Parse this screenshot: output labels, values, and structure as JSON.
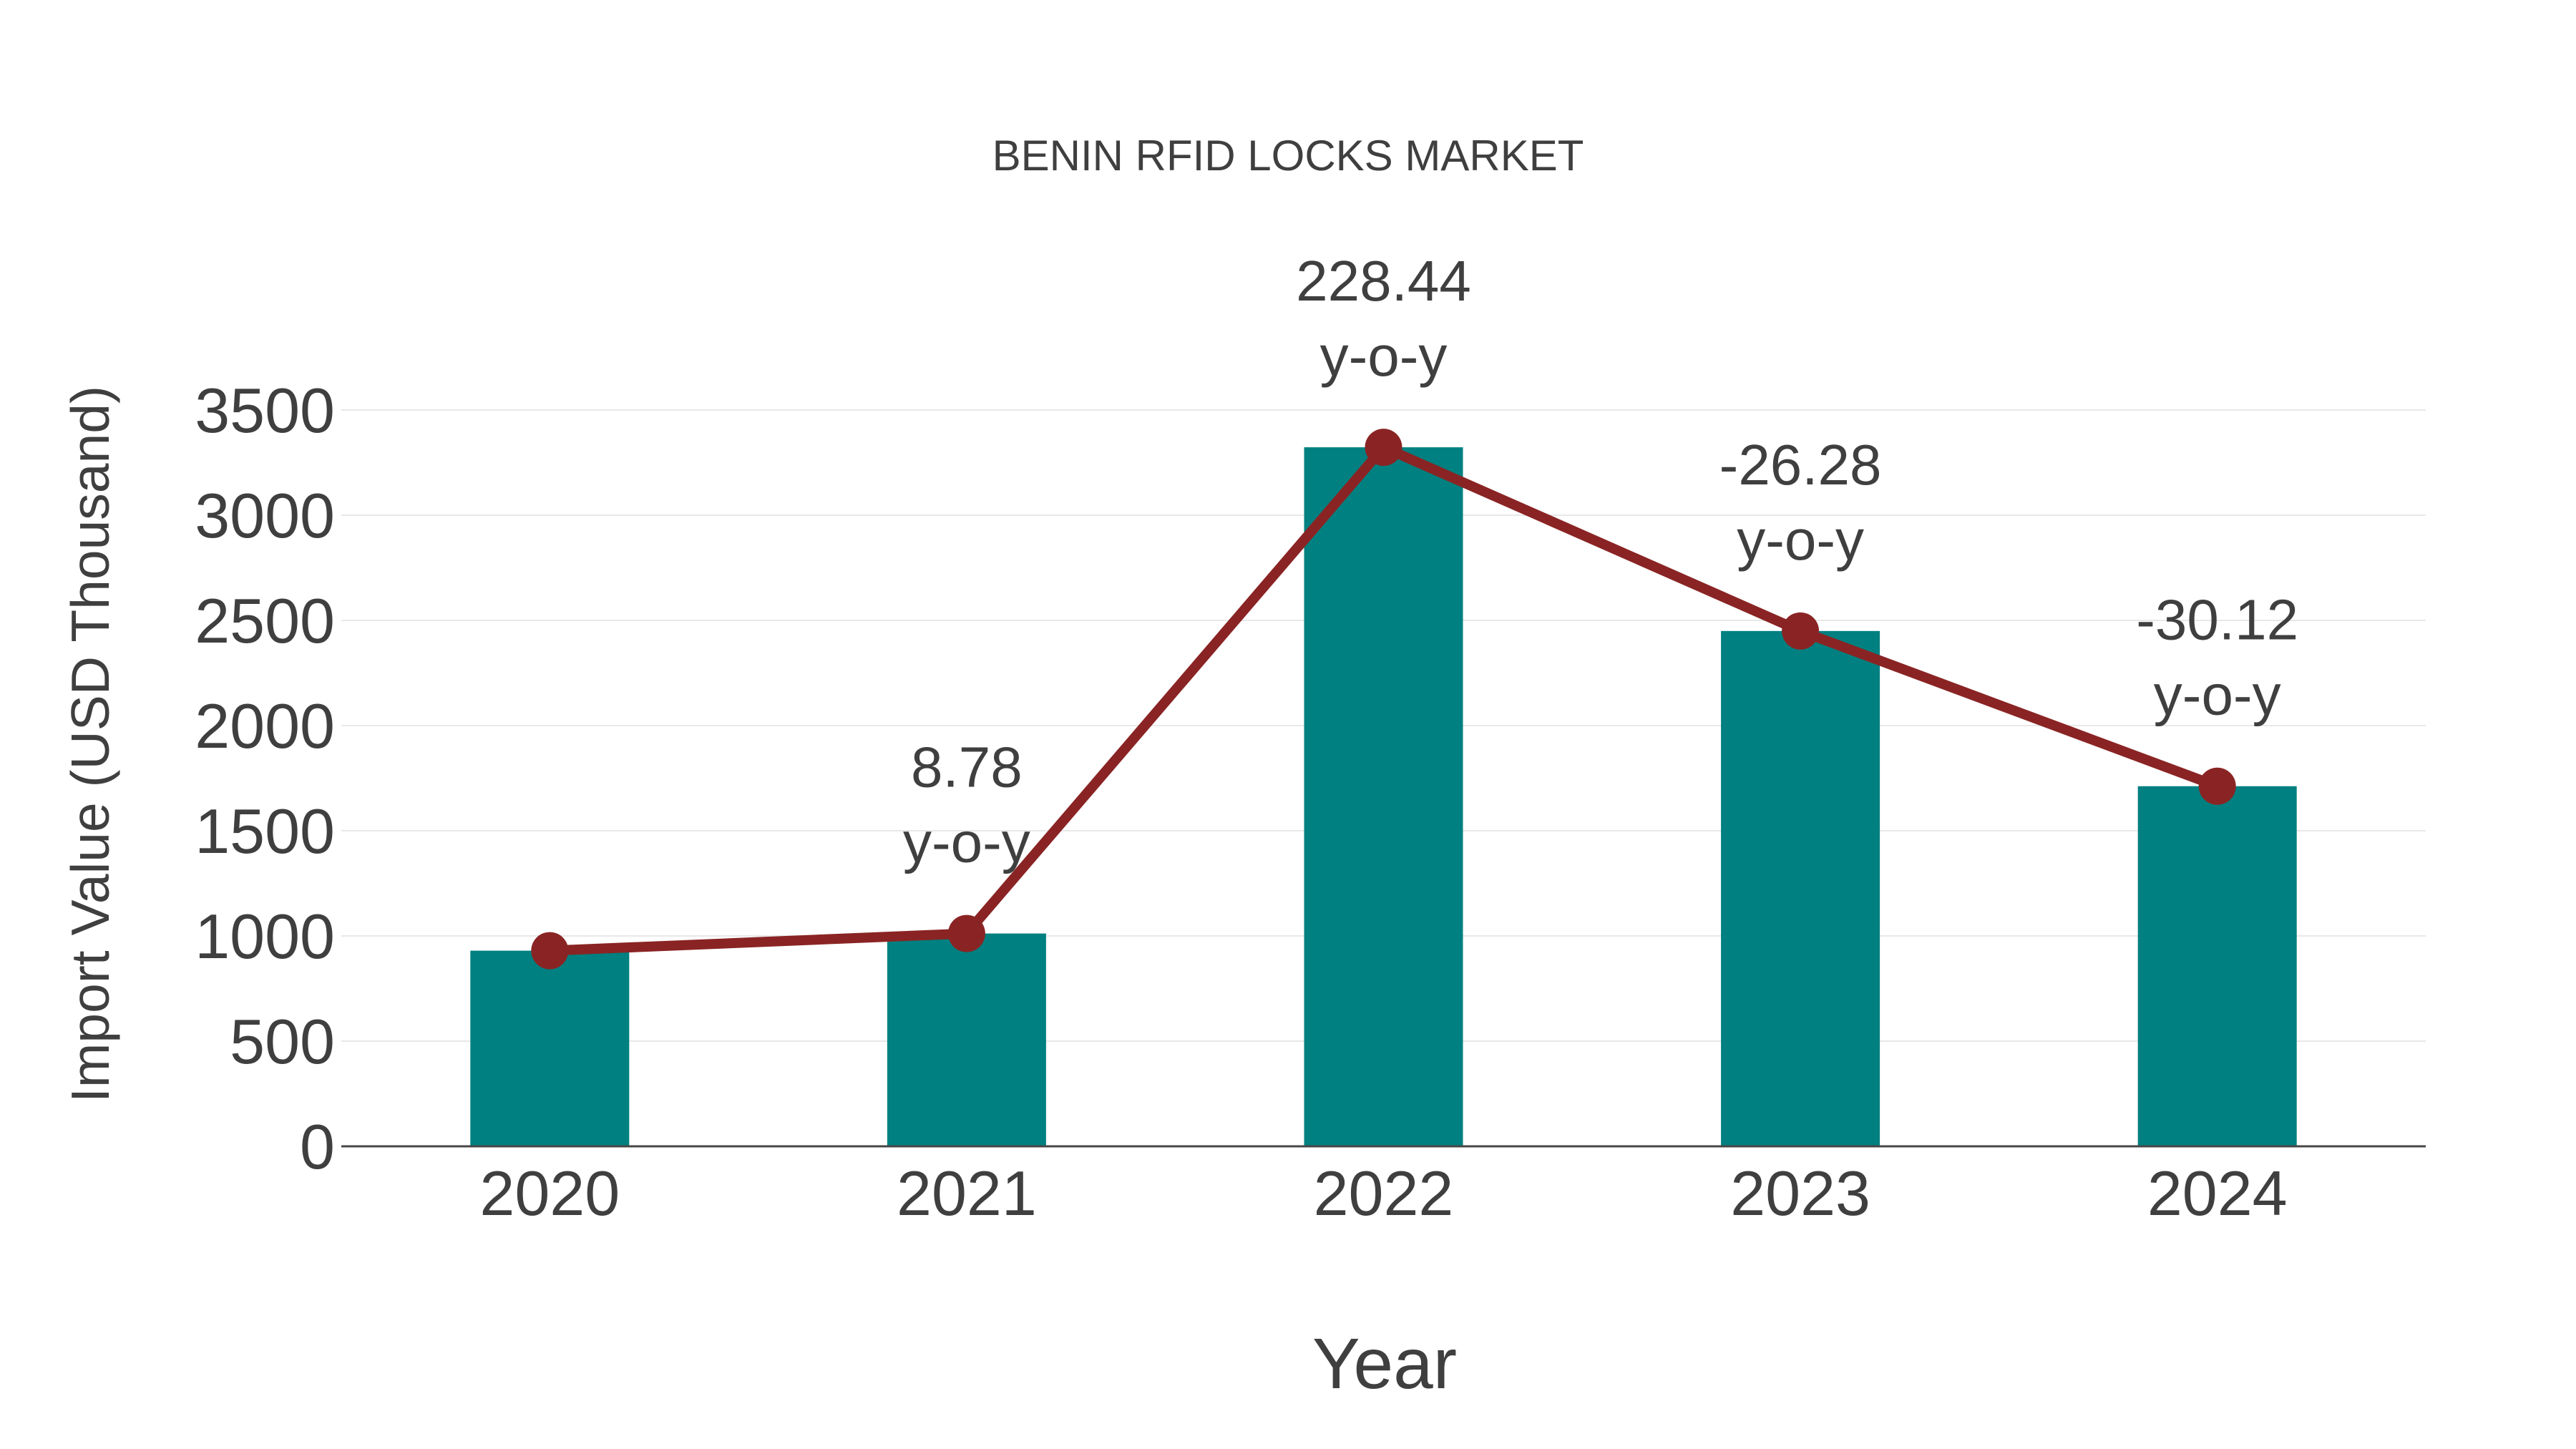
{
  "title": "BENIN RFID LOCKS MARKET",
  "chart_data": {
    "type": "bar",
    "title": "BENIN RFID LOCKS MARKET",
    "xlabel": "Year",
    "ylabel": "Import Value (USD Thousand)",
    "categories": [
      "2020",
      "2021",
      "2022",
      "2023",
      "2024"
    ],
    "series": [
      {
        "name": "import-value-bars",
        "type": "bar",
        "values": [
          930,
          1011.66,
          3322.83,
          2449.57,
          1711.75
        ]
      },
      {
        "name": "import-value-trend-line",
        "type": "line",
        "values": [
          930,
          1011.66,
          3322.83,
          2449.57,
          1711.75
        ]
      }
    ],
    "annotations": [
      {
        "category": "2021",
        "value": "8.78",
        "suffix": "y-o-y"
      },
      {
        "category": "2022",
        "value": "228.44",
        "suffix": "y-o-y"
      },
      {
        "category": "2023",
        "value": "-26.28",
        "suffix": "y-o-y"
      },
      {
        "category": "2024",
        "value": "-30.12",
        "suffix": "y-o-y"
      }
    ],
    "ylim": [
      0,
      3500
    ],
    "yticks": [
      0,
      500,
      1000,
      1500,
      2000,
      2500,
      3000,
      3500
    ],
    "grid": true,
    "legend": false
  },
  "colors": {
    "bar": "#008080",
    "line": "#8a2424",
    "marker": "#8a2424",
    "text": "#3f3f3f",
    "grid": "#e8e8e8",
    "axis": "#474747",
    "background": "#ffffff"
  }
}
